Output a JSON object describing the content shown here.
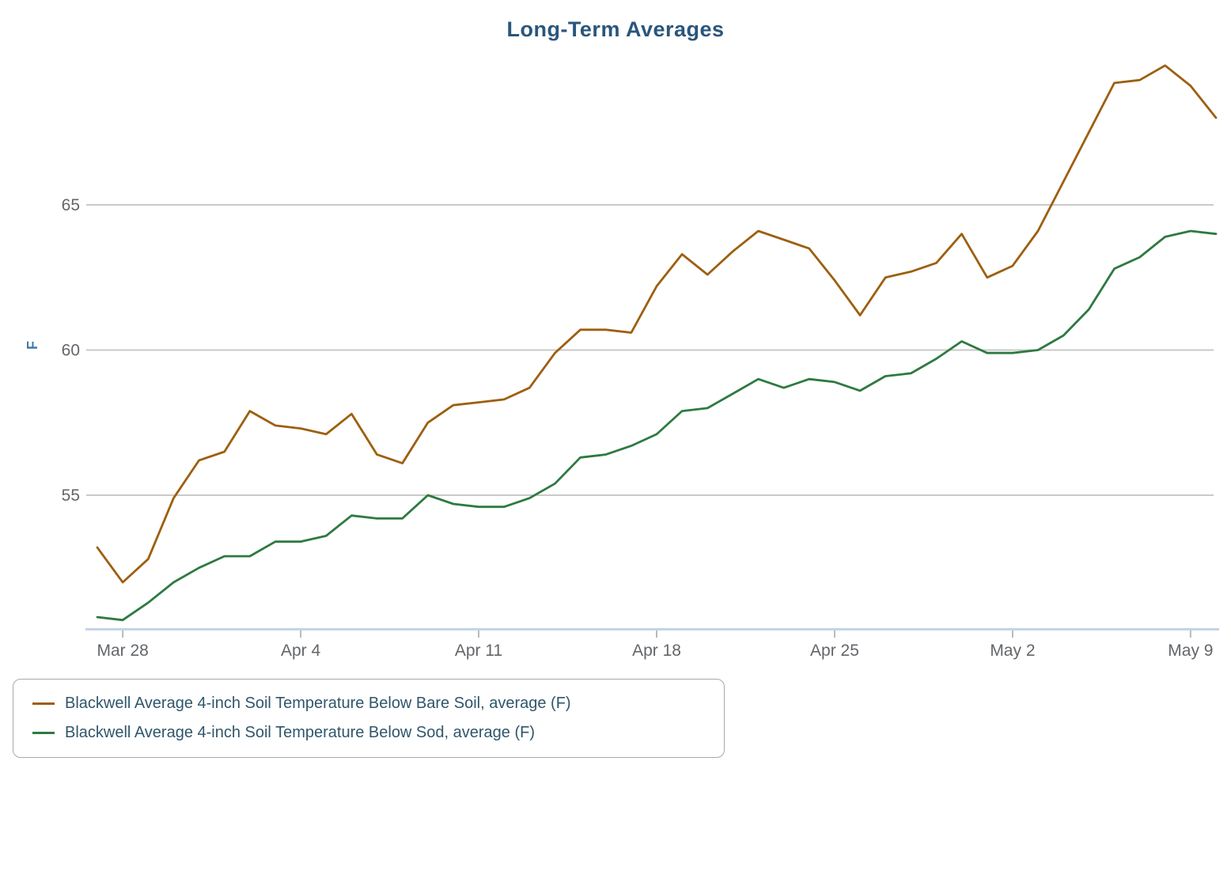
{
  "chart_data": {
    "type": "line",
    "title": "Long-Term Averages",
    "ylabel": "F",
    "xlabel": "",
    "grid": "horizontal",
    "legend_position": "bottom-left",
    "y_ticks": [
      55,
      60,
      65
    ],
    "ylim": [
      50.3,
      70.5
    ],
    "categories": [
      "Mar 27",
      "Mar 28",
      "Mar 29",
      "Mar 30",
      "Mar 31",
      "Apr 1",
      "Apr 2",
      "Apr 3",
      "Apr 4",
      "Apr 5",
      "Apr 6",
      "Apr 7",
      "Apr 8",
      "Apr 9",
      "Apr 10",
      "Apr 11",
      "Apr 12",
      "Apr 13",
      "Apr 14",
      "Apr 15",
      "Apr 16",
      "Apr 17",
      "Apr 18",
      "Apr 19",
      "Apr 20",
      "Apr 21",
      "Apr 22",
      "Apr 23",
      "Apr 24",
      "Apr 25",
      "Apr 26",
      "Apr 27",
      "Apr 28",
      "Apr 29",
      "Apr 30",
      "May 1",
      "May 2",
      "May 3",
      "May 4",
      "May 5",
      "May 6",
      "May 7",
      "May 8",
      "May 9",
      "May 10"
    ],
    "x_tick_labels": [
      "Mar 28",
      "Apr 4",
      "Apr 11",
      "Apr 18",
      "Apr 25",
      "May 2",
      "May 9"
    ],
    "series": [
      {
        "name": "Blackwell Average 4-inch Soil Temperature Below Bare Soil, average (F)",
        "color": "#9d5f10",
        "values": [
          53.2,
          52.0,
          52.8,
          54.9,
          56.2,
          56.5,
          57.9,
          57.4,
          57.3,
          57.1,
          57.8,
          56.4,
          56.1,
          57.5,
          58.1,
          58.2,
          58.3,
          58.7,
          59.9,
          60.7,
          60.7,
          60.6,
          62.2,
          63.3,
          62.6,
          63.4,
          64.1,
          63.8,
          63.5,
          62.4,
          61.2,
          62.5,
          62.7,
          63.0,
          64.0,
          62.5,
          62.9,
          64.1,
          65.8,
          67.5,
          69.2,
          69.3,
          69.8,
          69.1,
          68.0
        ]
      },
      {
        "name": "Blackwell Average 4-inch Soil Temperature Below Sod, average (F)",
        "color": "#2d7a41",
        "values": [
          50.8,
          50.7,
          51.3,
          52.0,
          52.5,
          52.9,
          52.9,
          53.4,
          53.4,
          53.6,
          54.3,
          54.2,
          54.2,
          55.0,
          54.7,
          54.6,
          54.6,
          54.9,
          55.4,
          56.3,
          56.4,
          56.7,
          57.1,
          57.9,
          58.0,
          58.5,
          59.0,
          58.7,
          59.0,
          58.9,
          58.6,
          59.1,
          59.2,
          59.7,
          60.3,
          59.9,
          59.9,
          60.0,
          60.5,
          61.4,
          62.8,
          63.2,
          63.9,
          64.1,
          64.0
        ]
      }
    ],
    "colors": {
      "title_text": "#2a567c",
      "legend_text": "#2f566b",
      "tick_text": "#63666a",
      "y_axis_label_text": "#4478aa",
      "gridline": "#c3c3c3",
      "axis_line": "#c5d3e6",
      "tick_mark": "#b6bac0"
    }
  }
}
